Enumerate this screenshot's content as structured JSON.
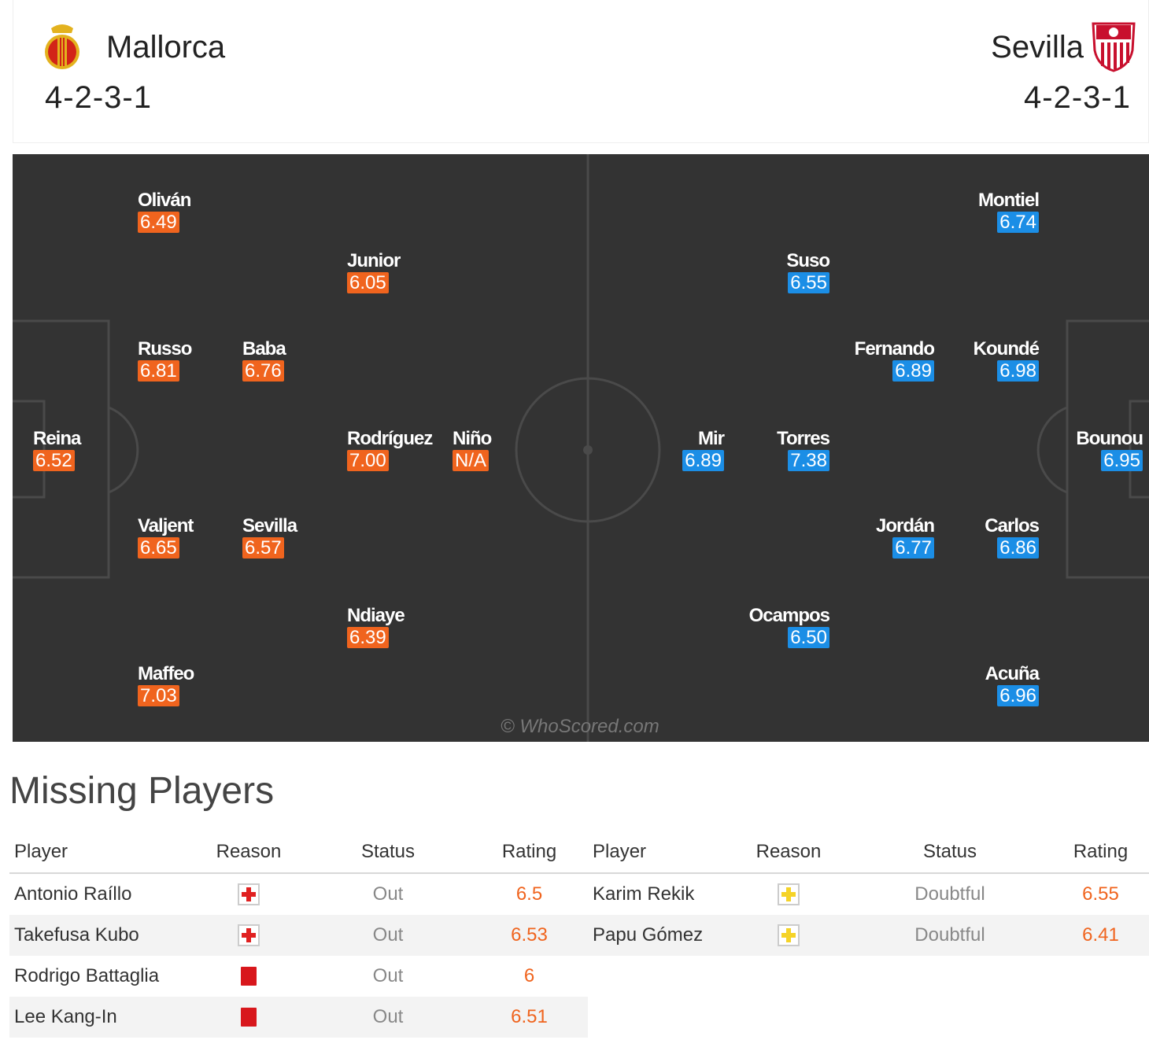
{
  "header": {
    "home": {
      "name": "Mallorca",
      "formation": "4-2-3-1"
    },
    "away": {
      "name": "Sevilla",
      "formation": "4-2-3-1"
    }
  },
  "pitch": {
    "watermark": "© WhoScored.com",
    "home_players": [
      {
        "name": "Reina",
        "rating": "6.52"
      },
      {
        "name": "Oliván",
        "rating": "6.49"
      },
      {
        "name": "Russo",
        "rating": "6.81"
      },
      {
        "name": "Valjent",
        "rating": "6.65"
      },
      {
        "name": "Maffeo",
        "rating": "7.03"
      },
      {
        "name": "Baba",
        "rating": "6.76"
      },
      {
        "name": "Sevilla",
        "rating": "6.57"
      },
      {
        "name": "Junior",
        "rating": "6.05"
      },
      {
        "name": "Rodríguez",
        "rating": "7.00"
      },
      {
        "name": "Ndiaye",
        "rating": "6.39"
      },
      {
        "name": "Niño",
        "rating": "N/A"
      }
    ],
    "away_players": [
      {
        "name": "Bounou",
        "rating": "6.95"
      },
      {
        "name": "Montiel",
        "rating": "6.74"
      },
      {
        "name": "Koundé",
        "rating": "6.98"
      },
      {
        "name": "Carlos",
        "rating": "6.86"
      },
      {
        "name": "Acuña",
        "rating": "6.96"
      },
      {
        "name": "Fernando",
        "rating": "6.89"
      },
      {
        "name": "Jordán",
        "rating": "6.77"
      },
      {
        "name": "Suso",
        "rating": "6.55"
      },
      {
        "name": "Torres",
        "rating": "7.38"
      },
      {
        "name": "Ocampos",
        "rating": "6.50"
      },
      {
        "name": "Mir",
        "rating": "6.89"
      }
    ]
  },
  "missing": {
    "title": "Missing Players",
    "headers": {
      "player": "Player",
      "reason": "Reason",
      "status": "Status",
      "rating": "Rating"
    },
    "home": [
      {
        "player": "Antonio Raíllo",
        "reason_icon": "injury-icon",
        "status": "Out",
        "rating": "6.5"
      },
      {
        "player": "Takefusa Kubo",
        "reason_icon": "injury-icon",
        "status": "Out",
        "rating": "6.53"
      },
      {
        "player": "Rodrigo Battaglia",
        "reason_icon": "red-card-icon",
        "status": "Out",
        "rating": "6"
      },
      {
        "player": "Lee Kang-In",
        "reason_icon": "red-card-icon",
        "status": "Out",
        "rating": "6.51"
      }
    ],
    "away": [
      {
        "player": "Karim Rekik",
        "reason_icon": "doubtful-injury-icon",
        "status": "Doubtful",
        "rating": "6.55"
      },
      {
        "player": "Papu Gómez",
        "reason_icon": "doubtful-injury-icon",
        "status": "Doubtful",
        "rating": "6.41"
      }
    ]
  },
  "colors": {
    "home_rating": "#f0641e",
    "away_rating": "#1b8ee6",
    "pitch": "#333333"
  }
}
